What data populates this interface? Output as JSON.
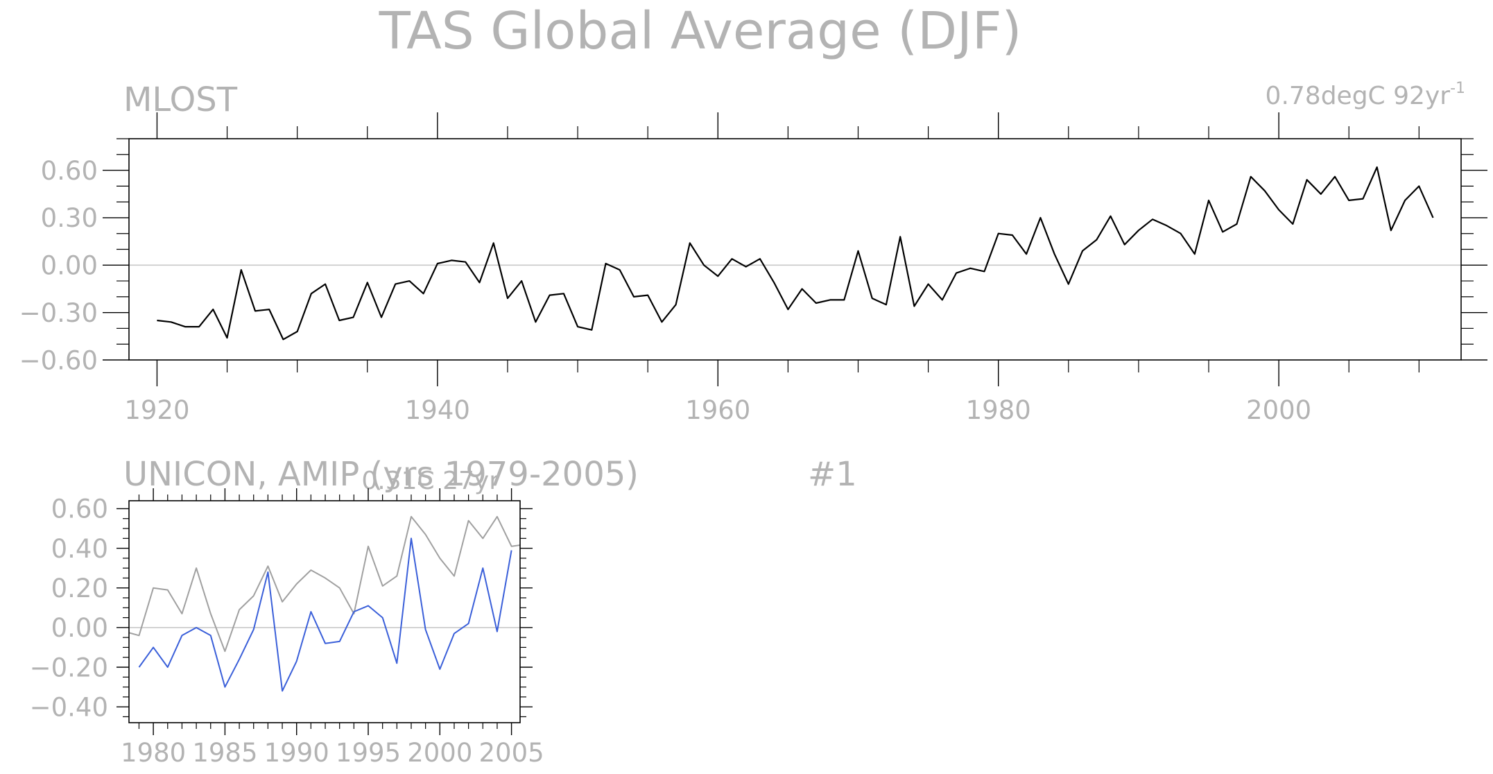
{
  "figure": {
    "title": "TAS Global Average (DJF)",
    "colors": {
      "obs": "#000000",
      "model": "#3a5fd9",
      "obs_ref": "#a0a0a0",
      "zero": "#c8c8c8",
      "text": "#b3b3b3"
    }
  },
  "chart_data": [
    {
      "type": "line",
      "panel_label": "MLOST",
      "trend_label": "0.78degC 92yr",
      "trend_superscript": "-1",
      "xlim": [
        1918,
        2013
      ],
      "ylim": [
        -0.6,
        0.8
      ],
      "xticks": [
        1920,
        1940,
        1960,
        1980,
        2000
      ],
      "xticklabels": [
        "1920",
        "1940",
        "1960",
        "1980",
        "2000"
      ],
      "yticks": [
        -0.6,
        -0.3,
        0.0,
        0.3,
        0.6
      ],
      "yticklabels": [
        "-0.60",
        "-0.30",
        "0.00",
        "0.30",
        "0.60"
      ],
      "grid": false,
      "zero_line": true,
      "series": [
        {
          "color": "#000000",
          "x": [
            1920,
            1921,
            1922,
            1923,
            1924,
            1925,
            1926,
            1927,
            1928,
            1929,
            1930,
            1931,
            1932,
            1933,
            1934,
            1935,
            1936,
            1937,
            1938,
            1939,
            1940,
            1941,
            1942,
            1943,
            1944,
            1945,
            1946,
            1947,
            1948,
            1949,
            1950,
            1951,
            1952,
            1953,
            1954,
            1955,
            1956,
            1957,
            1958,
            1959,
            1960,
            1961,
            1962,
            1963,
            1964,
            1965,
            1966,
            1967,
            1968,
            1969,
            1970,
            1971,
            1972,
            1973,
            1974,
            1975,
            1976,
            1977,
            1978,
            1979,
            1980,
            1981,
            1982,
            1983,
            1984,
            1985,
            1986,
            1987,
            1988,
            1989,
            1990,
            1991,
            1992,
            1993,
            1994,
            1995,
            1996,
            1997,
            1998,
            1999,
            2000,
            2001,
            2002,
            2003,
            2004,
            2005,
            2006,
            2007,
            2008,
            2009,
            2010,
            2011
          ],
          "values": [
            -0.35,
            -0.36,
            -0.39,
            -0.39,
            -0.28,
            -0.46,
            -0.03,
            -0.29,
            -0.28,
            -0.47,
            -0.42,
            -0.18,
            -0.12,
            -0.35,
            -0.33,
            -0.11,
            -0.33,
            -0.12,
            -0.1,
            -0.18,
            0.01,
            0.03,
            0.02,
            -0.11,
            0.14,
            -0.21,
            -0.1,
            -0.36,
            -0.19,
            -0.18,
            -0.39,
            -0.41,
            0.01,
            -0.03,
            -0.2,
            -0.19,
            -0.36,
            -0.25,
            0.14,
            0.0,
            -0.07,
            0.04,
            -0.01,
            0.04,
            -0.11,
            -0.28,
            -0.15,
            -0.24,
            -0.22,
            -0.22,
            0.09,
            -0.21,
            -0.25,
            0.18,
            -0.26,
            -0.12,
            -0.22,
            -0.05,
            -0.02,
            -0.04,
            0.2,
            0.19,
            0.07,
            0.3,
            0.07,
            -0.12,
            0.09,
            0.16,
            0.31,
            0.13,
            0.22,
            0.29,
            0.25,
            0.2,
            0.07,
            0.41,
            0.21,
            0.26,
            0.56,
            0.47,
            0.35,
            0.26,
            0.54,
            0.45,
            0.56,
            0.41,
            0.42,
            0.62,
            0.22,
            0.41,
            0.5,
            0.3
          ]
        }
      ]
    },
    {
      "type": "line",
      "panel_label": "UNICON, AMIP (yrs 1979-2005)",
      "run_label": "#1",
      "trend_label": "0.31C 27yr",
      "xlim": [
        1978.3,
        2005.6
      ],
      "ylim": [
        -0.48,
        0.64
      ],
      "xticks": [
        1980,
        1985,
        1990,
        1995,
        2000,
        2005
      ],
      "xticklabels": [
        "1980",
        "1985",
        "1990",
        "1995",
        "2000",
        "2005"
      ],
      "yticks": [
        -0.4,
        -0.2,
        0.0,
        0.2,
        0.4,
        0.6
      ],
      "yticklabels": [
        "-0.40",
        "-0.20",
        "0.00",
        "0.20",
        "0.40",
        "0.60"
      ],
      "grid": false,
      "zero_line": true,
      "series": [
        {
          "color": "#a0a0a0",
          "x": [
            1978,
            1979,
            1980,
            1981,
            1982,
            1983,
            1984,
            1985,
            1986,
            1987,
            1988,
            1989,
            1990,
            1991,
            1992,
            1993,
            1994,
            1995,
            1996,
            1997,
            1998,
            1999,
            2000,
            2001,
            2002,
            2003,
            2004,
            2005,
            2006
          ],
          "values": [
            -0.02,
            -0.04,
            0.2,
            0.19,
            0.07,
            0.3,
            0.07,
            -0.12,
            0.09,
            0.16,
            0.31,
            0.13,
            0.22,
            0.29,
            0.25,
            0.2,
            0.07,
            0.41,
            0.21,
            0.26,
            0.56,
            0.47,
            0.35,
            0.26,
            0.54,
            0.45,
            0.56,
            0.41,
            0.42
          ]
        },
        {
          "color": "#3a5fd9",
          "x": [
            1979,
            1980,
            1981,
            1982,
            1983,
            1984,
            1985,
            1986,
            1987,
            1988,
            1989,
            1990,
            1991,
            1992,
            1993,
            1994,
            1995,
            1996,
            1997,
            1998,
            1999,
            2000,
            2001,
            2002,
            2003,
            2004,
            2005
          ],
          "values": [
            -0.2,
            -0.1,
            -0.2,
            -0.04,
            0.0,
            -0.04,
            -0.3,
            -0.16,
            -0.01,
            0.28,
            -0.32,
            -0.17,
            0.08,
            -0.08,
            -0.07,
            0.08,
            0.11,
            0.05,
            -0.18,
            0.45,
            -0.01,
            -0.21,
            -0.03,
            0.02,
            0.3,
            -0.02,
            0.39
          ]
        }
      ]
    }
  ]
}
